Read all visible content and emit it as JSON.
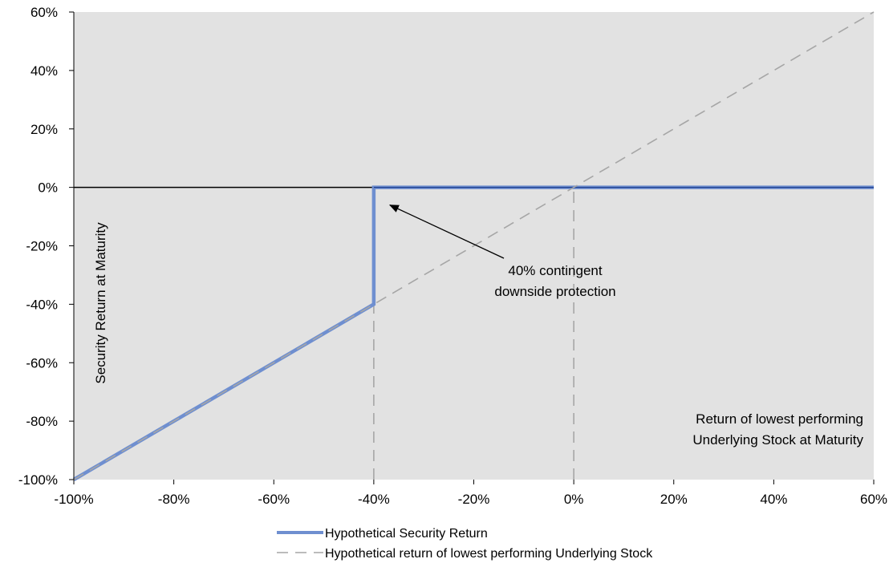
{
  "chart_data": {
    "type": "line",
    "title": "",
    "xlabel": "Return of lowest performing Underlying Stock at Maturity",
    "xlabel_lines": [
      "Return of lowest performing",
      "Underlying Stock at Maturity"
    ],
    "ylabel": "Security Return at Maturity",
    "xlim": [
      -100,
      60
    ],
    "ylim": [
      -100,
      60
    ],
    "x_ticks": [
      -100,
      -80,
      -60,
      -40,
      -20,
      0,
      20,
      40,
      60
    ],
    "y_ticks": [
      -100,
      -80,
      -60,
      -40,
      -20,
      0,
      20,
      40,
      60
    ],
    "x_tick_labels": [
      "-100%",
      "-80%",
      "-60%",
      "-40%",
      "-20%",
      "0%",
      "20%",
      "40%",
      "60%"
    ],
    "y_tick_labels": [
      "-100%",
      "-80%",
      "-60%",
      "-40%",
      "-20%",
      "0%",
      "20%",
      "40%",
      "60%"
    ],
    "grid": false,
    "plot_background": "#e2e2e2",
    "series": [
      {
        "name": "Hypothetical Security Return",
        "color": "#6f8fd0",
        "style": "solid",
        "x": [
          -100,
          -40,
          -40,
          60
        ],
        "y": [
          -100,
          -40,
          0,
          0
        ]
      },
      {
        "name": "Hypothetical return of lowest performing Underlying Stock",
        "color": "#a6a6a6",
        "style": "dashed",
        "x": [
          -100,
          60
        ],
        "y": [
          -100,
          60
        ]
      }
    ],
    "reference_lines": [
      {
        "orientation": "horizontal",
        "value": 0,
        "color": "#000000",
        "style": "solid"
      },
      {
        "orientation": "vertical",
        "value": -40,
        "color": "#a6a6a6",
        "style": "dashed"
      },
      {
        "orientation": "vertical",
        "value": 0,
        "color": "#a6a6a6",
        "style": "dashed"
      }
    ],
    "annotation": {
      "lines": [
        "40% contingent",
        "downside protection"
      ],
      "arrow_to": [
        -40,
        0
      ]
    },
    "legend": {
      "placement": "bottom",
      "entries": [
        "Hypothetical Security Return",
        "Hypothetical return of lowest performing Underlying Stock"
      ]
    }
  }
}
